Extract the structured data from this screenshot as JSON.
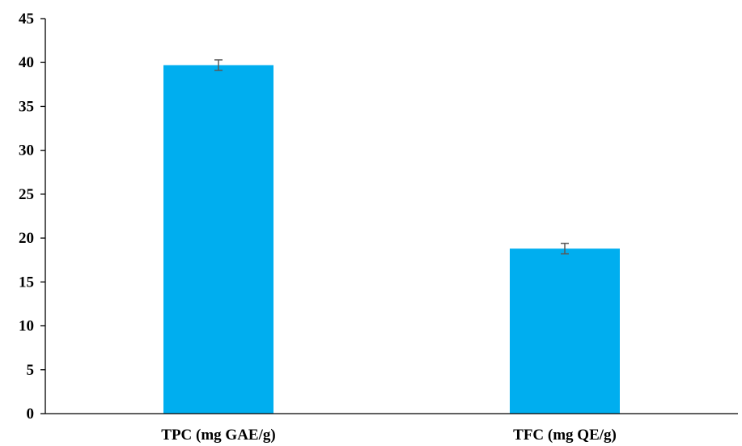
{
  "chart_data": {
    "type": "bar",
    "title": "",
    "xlabel": "",
    "ylabel": "",
    "categories": [
      "TPC (mg GAE/g)",
      "TFC (mg QE/g)"
    ],
    "values": [
      39.7,
      18.8
    ],
    "errors": [
      0.6,
      0.6
    ],
    "ylim": [
      0,
      45
    ],
    "yticks": [
      0,
      5,
      10,
      15,
      20,
      25,
      30,
      35,
      40,
      45
    ],
    "grid": false,
    "legend": "none",
    "colors": {
      "bar": "#00AEEF",
      "error_bar": "#595959",
      "axis": "#000000"
    }
  }
}
